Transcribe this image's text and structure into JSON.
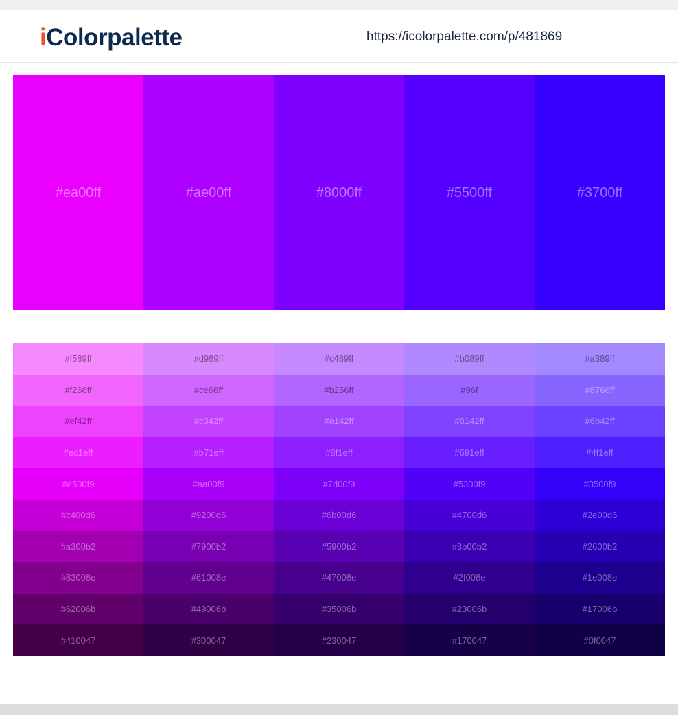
{
  "header": {
    "logo_prefix": "i",
    "logo_rest": "Colorpalette",
    "url": "https://icolorpalette.com/p/481869"
  },
  "palette": [
    "#ea00ff",
    "#ae00ff",
    "#8000ff",
    "#5500ff",
    "#3700ff"
  ],
  "shades": [
    [
      "#f589ff",
      "#d989ff",
      "#c489ff",
      "#b089ff",
      "#a389ff"
    ],
    [
      "#f266ff",
      "#ce66ff",
      "#b266ff",
      "#96f",
      "#8766ff"
    ],
    [
      "#ef42ff",
      "#c342ff",
      "#a142ff",
      "#8142ff",
      "#6b42ff"
    ],
    [
      "#ec1eff",
      "#b71eff",
      "#8f1eff",
      "#691eff",
      "#4f1eff"
    ],
    [
      "#e500f9",
      "#aa00f9",
      "#7d00f9",
      "#5300f9",
      "#3500f9"
    ],
    [
      "#c400d6",
      "#9200d6",
      "#6b00d6",
      "#4700d6",
      "#2e00d6"
    ],
    [
      "#a300b2",
      "#7900b2",
      "#5900b2",
      "#3b00b2",
      "#2600b2"
    ],
    [
      "#83008e",
      "#61008e",
      "#47008e",
      "#2f008e",
      "#1e008e"
    ],
    [
      "#62006b",
      "#49006b",
      "#35006b",
      "#23006b",
      "#17006b"
    ],
    [
      "#410047",
      "#300047",
      "#230047",
      "#170047",
      "#0f0047"
    ]
  ]
}
